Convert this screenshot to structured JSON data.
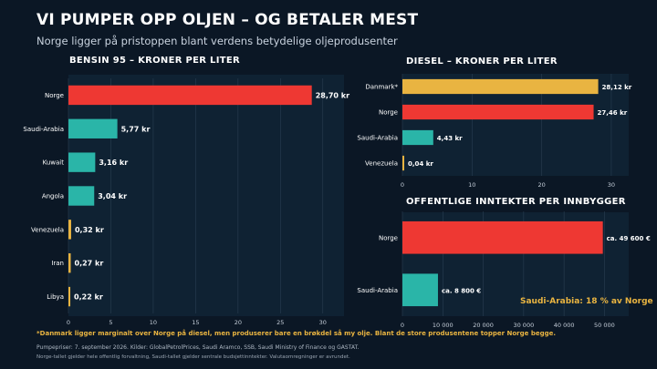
{
  "header": {
    "title": "VI PUMPER OPP OLJEN – OG BETALER MEST",
    "subtitle": "Norge ligger på pristoppen blant verdens betydelige oljeprodusenter"
  },
  "colors": {
    "norway": "#ee3833",
    "saudi": "#2ab5a8",
    "other": "#e9b441",
    "background": "#0b1725",
    "panel": "#0f2233"
  },
  "chart_data": [
    {
      "type": "bar",
      "orientation": "horizontal",
      "title": "BENSIN 95 – KRONER PER LITER",
      "categories": [
        "Norge",
        "Saudi-Arabia",
        "Kuwait",
        "Angola",
        "Venezuela",
        "Iran",
        "Libya"
      ],
      "values": [
        28.7,
        5.77,
        3.16,
        3.04,
        0.32,
        0.27,
        0.22
      ],
      "labels": [
        "28,70 kr",
        "5,77 kr",
        "3,16 kr",
        "3,04 kr",
        "0,32 kr",
        "0,27 kr",
        "0,22 kr"
      ],
      "color_keys": [
        "norway",
        "saudi",
        "saudi",
        "saudi",
        "other",
        "other",
        "other"
      ],
      "xlim": [
        0,
        32.5
      ],
      "ticks": [
        0,
        5,
        10,
        15,
        20,
        25,
        30
      ],
      "tick_labels": [
        "0",
        "5",
        "10",
        "15",
        "20",
        "25",
        "30"
      ],
      "grid": true
    },
    {
      "type": "bar",
      "orientation": "horizontal",
      "title": "DIESEL – KRONER PER LITER",
      "categories": [
        "Danmark*",
        "Norge",
        "Saudi-Arabia",
        "Venezuela"
      ],
      "values": [
        28.12,
        27.46,
        4.43,
        0.04
      ],
      "labels": [
        "28,12 kr",
        "27,46 kr",
        "4,43 kr",
        "0,04 kr"
      ],
      "color_keys": [
        "other",
        "norway",
        "saudi",
        "other"
      ],
      "xlim": [
        0,
        32.5
      ],
      "ticks": [
        0,
        10,
        20,
        30
      ],
      "tick_labels": [
        "0",
        "10",
        "20",
        "30"
      ],
      "grid": true
    },
    {
      "type": "bar",
      "orientation": "horizontal",
      "title": "OFFENTLIGE INNTEKTER PER INNBYGGER",
      "categories": [
        "Norge",
        "Saudi-Arabia"
      ],
      "values": [
        49600,
        8800
      ],
      "labels": [
        "ca. 49 600 €",
        "ca. 8 800 €"
      ],
      "color_keys": [
        "norway",
        "saudi"
      ],
      "xlim": [
        0,
        56000
      ],
      "ticks": [
        0,
        10000,
        20000,
        30000,
        40000,
        50000
      ],
      "tick_labels": [
        "0",
        "10 000",
        "20 000",
        "30 000",
        "40 000",
        "50 000"
      ],
      "grid": true,
      "annotation": "Saudi-Arabia: 18 % av Norge"
    }
  ],
  "footer": {
    "note": "*Danmark ligger marginalt over Norge på diesel, men produserer bare en brøkdel så my olje. Blant de store produsentene topper Norge begge.",
    "source": "Pumpepriser: 7. september 2026. Kilder: GlobalPetrolPrices, Saudi Aramco, SSB, Saudi Ministry of Finance og GASTAT.",
    "disclaimer": "Norge-tallet gjelder hele offentlig forvaltning, Saudi-tallet gjelder sentrale budsjettinntekter. Valutaomregninger er avrundet."
  }
}
